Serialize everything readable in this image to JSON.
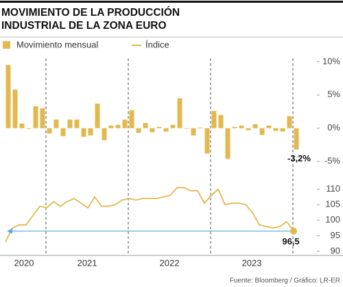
{
  "chart_data": {
    "type": "bar",
    "title": [
      "MOVIMIENTO DE LA PRODUCCIÓN",
      "INDUSTRIAL DE LA ZONA EURO"
    ],
    "categories": [
      null,
      null,
      null,
      null,
      null,
      null,
      null,
      null,
      null,
      null,
      null,
      null,
      null,
      null,
      null,
      null,
      null,
      null,
      null,
      null,
      null,
      null,
      null,
      null,
      null,
      null,
      null,
      null,
      null,
      null,
      null,
      null,
      null,
      null,
      null,
      null,
      null,
      null,
      null,
      null,
      null,
      null,
      null
    ],
    "year_labels": [
      "2020",
      "2021",
      "2022",
      "2023"
    ],
    "series": [
      {
        "name": "Movimiento mensual",
        "type": "bar",
        "color": "#e2b94e",
        "values": [
          9.5,
          5.8,
          0.7,
          -0.1,
          3.3,
          3.0,
          -0.8,
          1.3,
          -1.2,
          1.3,
          1.3,
          -1.3,
          -1.1,
          3.7,
          -1.8,
          0.4,
          0.5,
          1.3,
          2.7,
          -0.7,
          0.8,
          -0.6,
          0.2,
          -0.5,
          0.5,
          4.5,
          0.0,
          -1.1,
          0.1,
          -3.8,
          2.6,
          2.0,
          -4.6,
          0.2,
          0.4,
          -0.3,
          0.6,
          -1.0,
          0.4,
          -0.4,
          -0.5,
          1.8,
          -3.2
        ],
        "value_labels": [
          null,
          null,
          null,
          null,
          null,
          null,
          null,
          null,
          null,
          null,
          null,
          null,
          null,
          null,
          null,
          null,
          null,
          null,
          null,
          null,
          null,
          null,
          null,
          null,
          null,
          null,
          null,
          null,
          null,
          null,
          null,
          null,
          null,
          null,
          null,
          null,
          null,
          null,
          null,
          null,
          null,
          null,
          "-3,2%"
        ]
      },
      {
        "name": "Índice",
        "type": "line",
        "axis": "y2",
        "color": "#e2b94e",
        "values": [
          93,
          97.5,
          98.5,
          98.5,
          101.5,
          104.5,
          104,
          106,
          104.5,
          106,
          107,
          105.5,
          104,
          107.5,
          104.5,
          104.5,
          105,
          106.5,
          107,
          106.5,
          107,
          107,
          107,
          107.5,
          108,
          110.5,
          110.5,
          109.5,
          109.5,
          105.5,
          108,
          110,
          105,
          105.5,
          105.5,
          105,
          102.5,
          98.5,
          98,
          97.5,
          98,
          99.5,
          96.5
        ],
        "value_labels": [
          null,
          null,
          null,
          null,
          null,
          null,
          null,
          null,
          null,
          null,
          null,
          null,
          null,
          null,
          null,
          null,
          null,
          null,
          null,
          null,
          null,
          null,
          null,
          null,
          null,
          null,
          null,
          null,
          null,
          null,
          null,
          null,
          null,
          null,
          null,
          null,
          null,
          null,
          null,
          null,
          null,
          null,
          "96,5"
        ]
      }
    ],
    "ylim": [
      -5.5,
      10.5
    ],
    "yticks": [
      {
        "value": 10,
        "label": "10%"
      },
      {
        "value": 5,
        "label": "5%"
      },
      {
        "value": 0,
        "label": "0%"
      },
      {
        "value": -5,
        "label": "-5%"
      }
    ],
    "y2lim": [
      88,
      113
    ],
    "y2ticks": [
      110,
      105,
      100,
      95,
      90
    ],
    "grid": false,
    "source": "Fuente: Bloomberg / Gráfico: LR-ER"
  }
}
